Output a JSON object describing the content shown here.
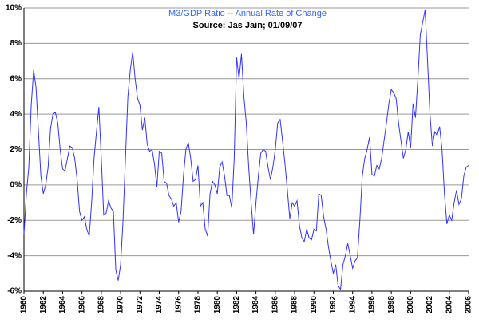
{
  "chart_data": {
    "type": "line",
    "title": "M3/GDP Ratio -- Annual Rate of Change",
    "subtitle": "Source: Jas Jain; 01/09/07",
    "x": [
      1960,
      1960.25,
      1960.5,
      1960.75,
      1961,
      1961.25,
      1961.5,
      1961.75,
      1962,
      1962.25,
      1962.5,
      1962.75,
      1963,
      1963.25,
      1963.5,
      1963.75,
      1964,
      1964.25,
      1964.5,
      1964.75,
      1965,
      1965.25,
      1965.5,
      1965.75,
      1966,
      1966.25,
      1966.5,
      1966.75,
      1967,
      1967.25,
      1967.5,
      1967.75,
      1968,
      1968.25,
      1968.5,
      1968.75,
      1969,
      1969.25,
      1969.5,
      1969.75,
      1970,
      1970.25,
      1970.5,
      1970.75,
      1971,
      1971.25,
      1971.5,
      1971.75,
      1972,
      1972.25,
      1972.5,
      1972.75,
      1973,
      1973.25,
      1973.5,
      1973.75,
      1974,
      1974.25,
      1974.5,
      1974.75,
      1975,
      1975.25,
      1975.5,
      1975.75,
      1976,
      1976.25,
      1976.5,
      1976.75,
      1977,
      1977.25,
      1977.5,
      1977.75,
      1978,
      1978.25,
      1978.5,
      1978.75,
      1979,
      1979.25,
      1979.5,
      1979.75,
      1980,
      1980.25,
      1980.5,
      1980.75,
      1981,
      1981.25,
      1981.5,
      1981.75,
      1982,
      1982.25,
      1982.5,
      1982.75,
      1983,
      1983.25,
      1983.5,
      1983.75,
      1984,
      1984.25,
      1984.5,
      1984.75,
      1985,
      1985.25,
      1985.5,
      1985.75,
      1986,
      1986.25,
      1986.5,
      1986.75,
      1987,
      1987.25,
      1987.5,
      1987.75,
      1988,
      1988.25,
      1988.5,
      1988.75,
      1989,
      1989.25,
      1989.5,
      1989.75,
      1990,
      1990.25,
      1990.5,
      1990.75,
      1991,
      1991.25,
      1991.5,
      1991.75,
      1992,
      1992.25,
      1992.5,
      1992.75,
      1993,
      1993.25,
      1993.5,
      1993.75,
      1994,
      1994.25,
      1994.5,
      1994.75,
      1995,
      1995.25,
      1995.5,
      1995.75,
      1996,
      1996.25,
      1996.5,
      1996.75,
      1997,
      1997.25,
      1997.5,
      1997.75,
      1998,
      1998.25,
      1998.5,
      1998.75,
      1999,
      1999.25,
      1999.5,
      1999.75,
      2000,
      2000.25,
      2000.5,
      2000.75,
      2001,
      2001.25,
      2001.5,
      2001.75,
      2002,
      2002.25,
      2002.5,
      2002.75,
      2003,
      2003.25,
      2003.5,
      2003.75,
      2004,
      2004.25,
      2004.5,
      2004.75,
      2005,
      2005.25,
      2005.5,
      2005.75,
      2006
    ],
    "series": [
      {
        "color": "#3333ff",
        "values": [
          -2.8,
          -0.5,
          1.0,
          4.5,
          6.5,
          5.5,
          3.0,
          0.5,
          -0.5,
          0,
          1.0,
          3.2,
          4.0,
          4.1,
          3.5,
          2.0,
          0.9,
          0.8,
          1.5,
          2.2,
          2.1,
          1.5,
          0.3,
          -1.5,
          -2.0,
          -1.8,
          -2.5,
          -2.9,
          -1.0,
          1.5,
          3.0,
          4.4,
          1.5,
          -1.7,
          -1.6,
          -0.9,
          -1.3,
          -1.5,
          -4.8,
          -5.4,
          -4.5,
          -2.0,
          1.5,
          5.0,
          6.5,
          7.5,
          6.0,
          4.9,
          4.5,
          3.1,
          3.8,
          2.3,
          1.9,
          2.0,
          1.2,
          -0.1,
          1.9,
          1.8,
          0.2,
          0.1,
          -0.6,
          -0.8,
          -1.2,
          -1.0,
          -2.1,
          -1.5,
          0.5,
          2.0,
          2.4,
          1.5,
          0.2,
          0.3,
          1.1,
          -1.2,
          -1.0,
          -2.5,
          -2.9,
          -0.5,
          0.2,
          0.0,
          -0.5,
          1.0,
          1.3,
          0.5,
          -0.6,
          -0.6,
          -1.3,
          1.5,
          7.2,
          6.0,
          7.4,
          5.0,
          3.5,
          1.0,
          -1.0,
          -2.8,
          -1.0,
          0.5,
          1.8,
          2.0,
          1.9,
          1.0,
          0.3,
          1.0,
          2.0,
          3.5,
          3.7,
          2.5,
          1.2,
          -0.3,
          -1.9,
          -1.0,
          -1.2,
          -0.9,
          -2.3,
          -3.0,
          -3.2,
          -2.5,
          -3.0,
          -3.1,
          -2.5,
          -2.6,
          -0.5,
          -0.6,
          -1.8,
          -2.5,
          -3.5,
          -4.3,
          -5.0,
          -4.5,
          -5.7,
          -5.9,
          -4.5,
          -4.0,
          -3.3,
          -4.0,
          -4.7,
          -4.3,
          -4.1,
          -2.0,
          0.5,
          1.5,
          2.0,
          2.7,
          0.6,
          0.5,
          1.1,
          0.9,
          1.5,
          2.5,
          3.5,
          4.6,
          5.4,
          5.2,
          4.9,
          3.5,
          2.5,
          1.5,
          2.0,
          3.0,
          2.1,
          4.6,
          3.8,
          6.0,
          8.5,
          9.2,
          9.9,
          7.0,
          4.0,
          2.2,
          3.0,
          2.8,
          3.3,
          2.0,
          -0.5,
          -2.2,
          -1.7,
          -2.0,
          -1.0,
          -0.3,
          -1.1,
          -0.8,
          0.5,
          1.0,
          1.1
        ]
      }
    ],
    "xlim": [
      1960,
      2006
    ],
    "xticks": [
      1960,
      1962,
      1964,
      1966,
      1968,
      1970,
      1972,
      1974,
      1976,
      1978,
      1980,
      1982,
      1984,
      1986,
      1988,
      1990,
      1992,
      1994,
      1996,
      1998,
      2000,
      2002,
      2004,
      2006
    ],
    "ylim": [
      -6,
      10
    ],
    "yticks": [
      {
        "value": -6,
        "label": "-6%"
      },
      {
        "value": -4,
        "label": "-4%"
      },
      {
        "value": -2,
        "label": "-2%"
      },
      {
        "value": 0,
        "label": "0%"
      },
      {
        "value": 2,
        "label": "2%"
      },
      {
        "value": 4,
        "label": "4%"
      },
      {
        "value": 6,
        "label": "6%"
      },
      {
        "value": 8,
        "label": "8%"
      },
      {
        "value": 10,
        "label": "10%"
      }
    ],
    "grid": true
  }
}
